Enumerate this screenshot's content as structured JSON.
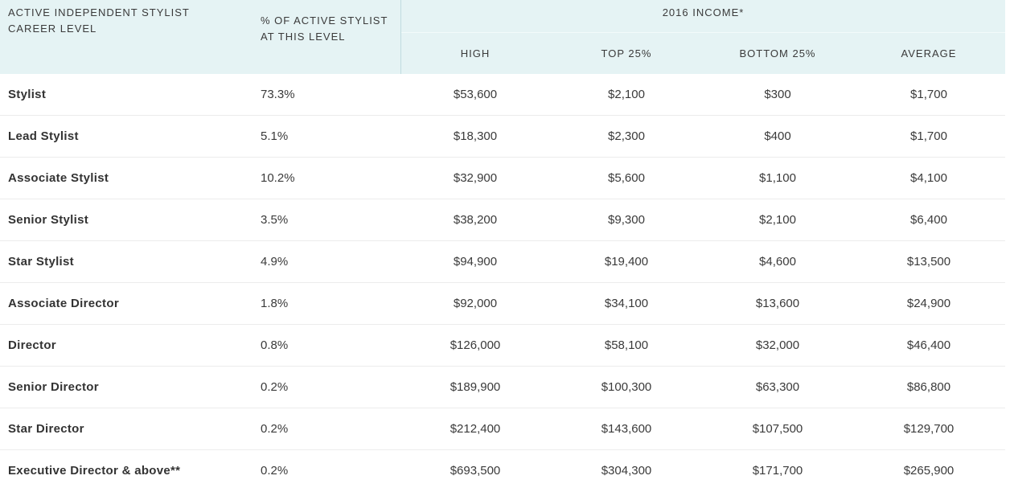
{
  "header": {
    "level": "ACTIVE INDEPENDENT STYLIST CAREER LEVEL",
    "pct": "% OF ACTIVE STYLIST AT THIS LEVEL",
    "income_group": "2016 INCOME*",
    "high": "HIGH",
    "top": "TOP 25%",
    "bottom": "BOTTOM 25%",
    "average": "AVERAGE"
  },
  "rows": [
    {
      "level": "Stylist",
      "pct": "73.3%",
      "high": "$53,600",
      "top": "$2,100",
      "bottom": "$300",
      "average": "$1,700"
    },
    {
      "level": "Lead Stylist",
      "pct": "5.1%",
      "high": "$18,300",
      "top": "$2,300",
      "bottom": "$400",
      "average": "$1,700"
    },
    {
      "level": "Associate Stylist",
      "pct": "10.2%",
      "high": "$32,900",
      "top": "$5,600",
      "bottom": "$1,100",
      "average": "$4,100"
    },
    {
      "level": "Senior Stylist",
      "pct": "3.5%",
      "high": "$38,200",
      "top": "$9,300",
      "bottom": "$2,100",
      "average": "$6,400"
    },
    {
      "level": "Star Stylist",
      "pct": "4.9%",
      "high": "$94,900",
      "top": "$19,400",
      "bottom": "$4,600",
      "average": "$13,500"
    },
    {
      "level": "Associate Director",
      "pct": "1.8%",
      "high": "$92,000",
      "top": "$34,100",
      "bottom": "$13,600",
      "average": "$24,900"
    },
    {
      "level": "Director",
      "pct": "0.8%",
      "high": "$126,000",
      "top": "$58,100",
      "bottom": "$32,000",
      "average": "$46,400"
    },
    {
      "level": "Senior Director",
      "pct": "0.2%",
      "high": "$189,900",
      "top": "$100,300",
      "bottom": "$63,300",
      "average": "$86,800"
    },
    {
      "level": "Star Director",
      "pct": "0.2%",
      "high": "$212,400",
      "top": "$143,600",
      "bottom": "$107,500",
      "average": "$129,700"
    },
    {
      "level": "Executive Director & above**",
      "pct": "0.2%",
      "high": "$693,500",
      "top": "$304,300",
      "bottom": "$171,700",
      "average": "$265,900"
    }
  ],
  "colors": {
    "header_bg": "#e5f3f4",
    "text": "#3a3a3a",
    "row_divider": "#ececec"
  }
}
